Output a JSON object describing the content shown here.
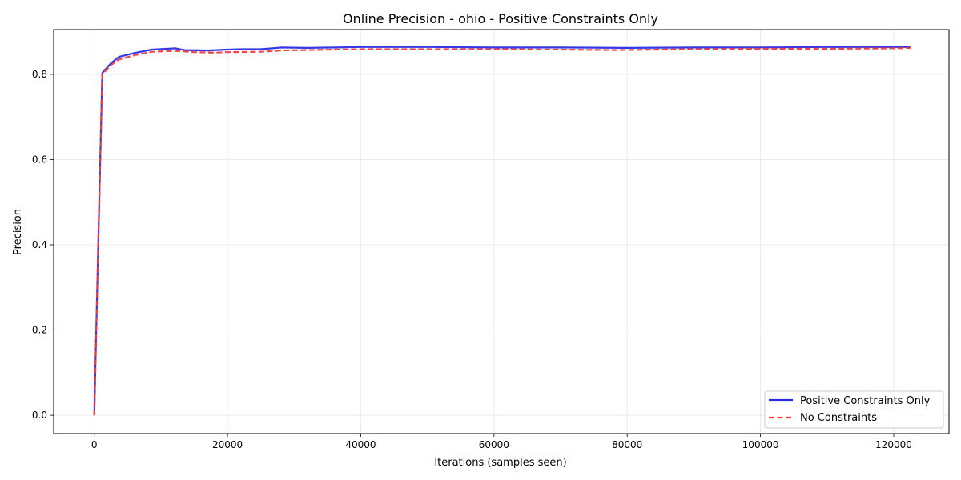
{
  "chart_data": {
    "type": "line",
    "title": "Online Precision - ohio - Positive Constraints Only",
    "xlabel": "Iterations (samples seen)",
    "ylabel": "Precision",
    "xlim": [
      -6100,
      128300
    ],
    "ylim": [
      -0.043,
      0.905
    ],
    "xticks": [
      0,
      20000,
      40000,
      60000,
      80000,
      100000,
      120000
    ],
    "xtick_labels": [
      "0",
      "20000",
      "40000",
      "60000",
      "80000",
      "100000",
      "120000"
    ],
    "yticks": [
      0.0,
      0.2,
      0.4,
      0.6,
      0.8
    ],
    "ytick_labels": [
      "0.0",
      "0.2",
      "0.4",
      "0.6",
      "0.8"
    ],
    "grid": true,
    "legend_position": "lower-right",
    "series": [
      {
        "name": "Positive Constraints Only",
        "color": "#2b2be6",
        "style": "solid",
        "x": [
          0,
          1200,
          2500,
          3700,
          6000,
          8600,
          12200,
          13500,
          17000,
          20000,
          22000,
          25000,
          28200,
          32000,
          36000,
          40000,
          44000,
          50000,
          60000,
          70000,
          80000,
          90000,
          100000,
          110000,
          120000,
          122500
        ],
        "y": [
          0.0,
          0.803,
          0.826,
          0.841,
          0.85,
          0.858,
          0.861,
          0.857,
          0.856,
          0.858,
          0.859,
          0.859,
          0.863,
          0.862,
          0.863,
          0.864,
          0.864,
          0.864,
          0.863,
          0.863,
          0.862,
          0.863,
          0.863,
          0.864,
          0.864,
          0.864
        ]
      },
      {
        "name": "No Constraints",
        "color": "#f03c3c",
        "style": "dashed",
        "x": [
          0,
          1200,
          2500,
          3700,
          6000,
          8600,
          12200,
          15000,
          18000,
          20000,
          25000,
          28200,
          32000,
          36000,
          40000,
          50000,
          60000,
          70000,
          78000,
          85000,
          90000,
          100000,
          110000,
          120000,
          122500
        ],
        "y": [
          0.0,
          0.8,
          0.822,
          0.835,
          0.845,
          0.853,
          0.855,
          0.852,
          0.851,
          0.852,
          0.853,
          0.856,
          0.857,
          0.858,
          0.859,
          0.859,
          0.859,
          0.858,
          0.857,
          0.858,
          0.859,
          0.86,
          0.86,
          0.861,
          0.862
        ]
      }
    ]
  }
}
